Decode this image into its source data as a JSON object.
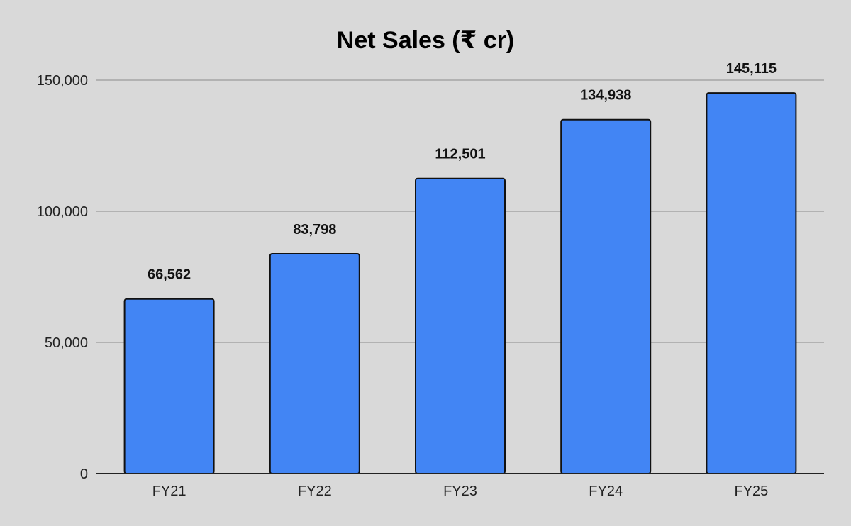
{
  "chart_data": {
    "type": "bar",
    "title": "Net Sales (₹ cr)",
    "categories": [
      "FY21",
      "FY22",
      "FY23",
      "FY24",
      "FY25"
    ],
    "values": [
      66562,
      83798,
      112501,
      134938,
      145115
    ],
    "value_labels": [
      "66,562",
      "83,798",
      "112,501",
      "134,938",
      "145,115"
    ],
    "yticks": [
      0,
      50000,
      100000,
      150000
    ],
    "ytick_labels": [
      "0",
      "50,000",
      "100,000",
      "150,000"
    ],
    "ylim": [
      0,
      150000
    ],
    "grid": true,
    "legend": "none",
    "colors": {
      "bar": "#4285f4",
      "background": "#d9d9d9",
      "grid": "#a6a6a6"
    }
  }
}
